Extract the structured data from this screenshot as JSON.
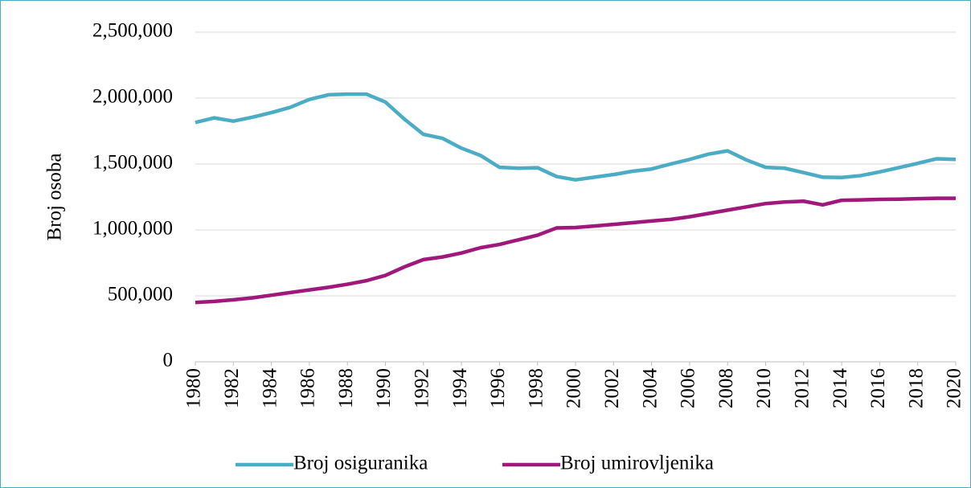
{
  "chart_data": {
    "type": "line",
    "ylabel": "Broj osoba",
    "x": [
      1980,
      1981,
      1982,
      1983,
      1984,
      1985,
      1986,
      1987,
      1988,
      1989,
      1990,
      1991,
      1992,
      1993,
      1994,
      1995,
      1996,
      1997,
      1998,
      1999,
      2000,
      2001,
      2002,
      2003,
      2004,
      2005,
      2006,
      2007,
      2008,
      2009,
      2010,
      2011,
      2012,
      2013,
      2014,
      2015,
      2016,
      2017,
      2018,
      2019,
      2020
    ],
    "xlim": [
      1980,
      2020
    ],
    "xticks": [
      1980,
      1982,
      1984,
      1986,
      1988,
      1990,
      1992,
      1994,
      1996,
      1998,
      2000,
      2002,
      2004,
      2006,
      2008,
      2010,
      2012,
      2014,
      2016,
      2018,
      2020
    ],
    "ylim": [
      0,
      2500000
    ],
    "yticks": [
      0,
      {
        "value": 500000,
        "label": "500,000"
      },
      {
        "value": 1000000,
        "label": "1,000,000"
      },
      {
        "value": 1500000,
        "label": "1,500,000"
      },
      {
        "value": 2000000,
        "label": "2,000,000"
      },
      {
        "value": 2500000,
        "label": "2,500,000"
      }
    ],
    "grid": true,
    "legend": "bottom",
    "series": [
      {
        "name": "Broj osiguranika",
        "color": "#4bacc6",
        "values": [
          1815000,
          1850000,
          1825000,
          1855000,
          1890000,
          1930000,
          1990000,
          2025000,
          2030000,
          2030000,
          1970000,
          1840000,
          1725000,
          1695000,
          1620000,
          1565000,
          1475000,
          1468000,
          1472000,
          1405000,
          1380000,
          1400000,
          1420000,
          1445000,
          1462000,
          1500000,
          1535000,
          1575000,
          1600000,
          1530000,
          1475000,
          1468000,
          1435000,
          1400000,
          1398000,
          1412000,
          1440000,
          1472000,
          1505000,
          1540000,
          1535000
        ]
      },
      {
        "name": "Broj umirovljenika",
        "color": "#a0187c",
        "values": [
          450000,
          458000,
          470000,
          485000,
          505000,
          525000,
          545000,
          565000,
          588000,
          615000,
          655000,
          720000,
          775000,
          795000,
          825000,
          865000,
          890000,
          925000,
          960000,
          1015000,
          1018000,
          1030000,
          1042000,
          1055000,
          1068000,
          1080000,
          1100000,
          1125000,
          1150000,
          1175000,
          1200000,
          1212000,
          1218000,
          1190000,
          1225000,
          1228000,
          1232000,
          1233000,
          1237000,
          1240000,
          1240000
        ]
      }
    ]
  }
}
